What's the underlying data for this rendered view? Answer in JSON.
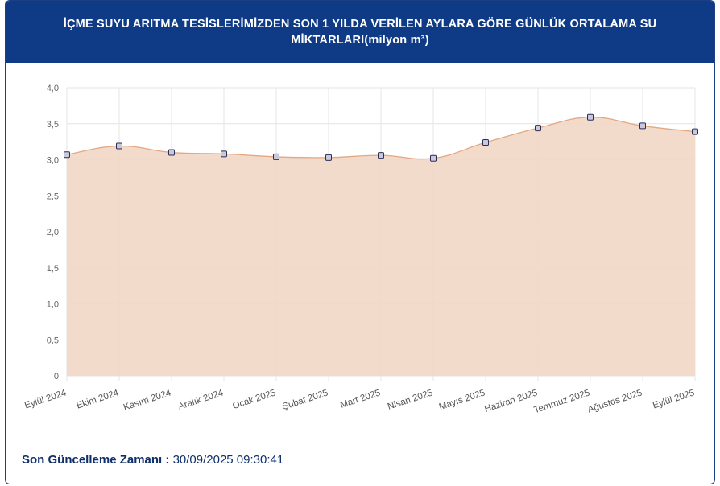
{
  "header": {
    "title": "İÇME SUYU ARITMA TESİSLERİMİZDEN SON 1 YILDA VERİLEN AYLARA GÖRE GÜNLÜK ORTALAMA SU MİKTARLARI(milyon m³)"
  },
  "footer": {
    "label": "Son Güncelleme Zamanı :",
    "value": "30/09/2025 09:30:41"
  },
  "colors": {
    "header_bg": "#0f3a85",
    "area_fill": "#f2d7c5",
    "line": "#e3a882",
    "point_fill": "#c9c9dd",
    "point_stroke": "#2b2f55"
  },
  "chart_data": {
    "type": "area",
    "title": "",
    "xlabel": "",
    "ylabel": "",
    "categories": [
      "Eylül 2024",
      "Ekim 2024",
      "Kasım 2024",
      "Aralık 2024",
      "Ocak 2025",
      "Şubat 2025",
      "Mart 2025",
      "Nisan 2025",
      "Mayıs 2025",
      "Haziran 2025",
      "Temmuz 2025",
      "Ağustos 2025",
      "Eylül 2025"
    ],
    "values": [
      3.07,
      3.19,
      3.1,
      3.08,
      3.04,
      3.03,
      3.06,
      3.02,
      3.24,
      3.44,
      3.59,
      3.47,
      3.39
    ],
    "ylim": [
      0,
      4
    ],
    "yticks": [
      "0",
      "0,5",
      "1,0",
      "1,5",
      "2,0",
      "2,5",
      "3,0",
      "3,5",
      "4,0"
    ],
    "grid": true,
    "legend": "none"
  }
}
